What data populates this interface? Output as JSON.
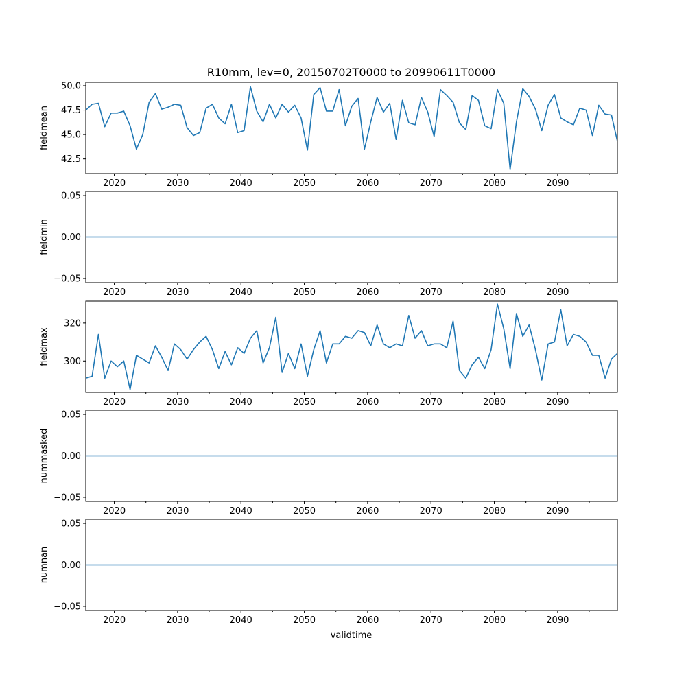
{
  "chart_data": {
    "type": "line",
    "title": "R10mm, lev=0, 20150702T0000 to 20990611T0000",
    "xlabel": "validtime",
    "xlim": [
      2015.5,
      2099.44
    ],
    "x_ticks_major": [
      2020,
      2030,
      2040,
      2050,
      2060,
      2070,
      2080,
      2090
    ],
    "x_tick_labels": [
      "2020",
      "2030",
      "2040",
      "2050",
      "2060",
      "2070",
      "2080",
      "2090"
    ],
    "x_ticks_minor": [
      2025,
      2035,
      2045,
      2055,
      2065,
      2075,
      2085,
      2095
    ],
    "years": [
      2015.5,
      2016.5,
      2017.5,
      2018.5,
      2019.5,
      2020.5,
      2021.5,
      2022.5,
      2023.5,
      2024.5,
      2025.5,
      2026.5,
      2027.5,
      2028.5,
      2029.5,
      2030.5,
      2031.5,
      2032.5,
      2033.5,
      2034.5,
      2035.5,
      2036.5,
      2037.5,
      2038.5,
      2039.5,
      2040.5,
      2041.5,
      2042.5,
      2043.5,
      2044.5,
      2045.5,
      2046.5,
      2047.5,
      2048.5,
      2049.5,
      2050.5,
      2051.5,
      2052.5,
      2053.5,
      2054.5,
      2055.5,
      2056.5,
      2057.5,
      2058.5,
      2059.5,
      2060.5,
      2061.5,
      2062.5,
      2063.5,
      2064.5,
      2065.5,
      2066.5,
      2067.5,
      2068.5,
      2069.5,
      2070.5,
      2071.5,
      2072.5,
      2073.5,
      2074.5,
      2075.5,
      2076.5,
      2077.5,
      2078.5,
      2079.5,
      2080.5,
      2081.5,
      2082.5,
      2083.5,
      2084.5,
      2085.5,
      2086.5,
      2087.5,
      2088.5,
      2089.5,
      2090.5,
      2091.5,
      2092.5,
      2093.5,
      2094.5,
      2095.5,
      2096.5,
      2097.5,
      2098.5,
      2099.44
    ],
    "panels": [
      {
        "ylabel": "fieldmean",
        "ylim": [
          41.0,
          50.35
        ],
        "yticks": [
          42.5,
          45.0,
          47.5,
          50.0
        ],
        "ytick_labels": [
          "42.5",
          "45.0",
          "47.5",
          "50.0"
        ],
        "values": [
          47.5,
          48.1,
          48.2,
          45.8,
          47.2,
          47.2,
          47.4,
          45.9,
          43.5,
          45.0,
          48.3,
          49.2,
          47.6,
          47.8,
          48.1,
          48.0,
          45.7,
          44.9,
          45.2,
          47.7,
          48.1,
          46.7,
          46.1,
          48.1,
          45.2,
          45.4,
          49.9,
          47.4,
          46.3,
          48.1,
          46.7,
          48.1,
          47.3,
          48.0,
          46.7,
          43.4,
          49.1,
          49.8,
          47.4,
          47.4,
          49.6,
          45.9,
          47.9,
          48.7,
          43.5,
          46.3,
          48.8,
          47.3,
          48.2,
          44.5,
          48.5,
          46.2,
          46.0,
          48.8,
          47.3,
          44.8,
          49.6,
          49.0,
          48.3,
          46.2,
          45.5,
          49.0,
          48.5,
          45.9,
          45.6,
          49.6,
          48.2,
          41.4,
          46.3,
          49.7,
          48.9,
          47.6,
          45.4,
          48.0,
          49.1,
          46.7,
          46.3,
          46.0,
          47.7,
          47.5,
          44.9,
          48.0,
          47.1,
          47.0,
          44.3
        ]
      },
      {
        "ylabel": "fieldmin",
        "ylim": [
          -0.055,
          0.055
        ],
        "yticks": [
          -0.05,
          0.0,
          0.05
        ],
        "ytick_labels": [
          "−0.05",
          "0.00",
          "0.05"
        ],
        "values": [
          0,
          0,
          0,
          0,
          0,
          0,
          0,
          0,
          0,
          0,
          0,
          0,
          0,
          0,
          0,
          0,
          0,
          0,
          0,
          0,
          0,
          0,
          0,
          0,
          0,
          0,
          0,
          0,
          0,
          0,
          0,
          0,
          0,
          0,
          0,
          0,
          0,
          0,
          0,
          0,
          0,
          0,
          0,
          0,
          0,
          0,
          0,
          0,
          0,
          0,
          0,
          0,
          0,
          0,
          0,
          0,
          0,
          0,
          0,
          0,
          0,
          0,
          0,
          0,
          0,
          0,
          0,
          0,
          0,
          0,
          0,
          0,
          0,
          0,
          0,
          0,
          0,
          0,
          0,
          0,
          0,
          0,
          0,
          0,
          0
        ]
      },
      {
        "ylabel": "fieldmax",
        "ylim": [
          283.5,
          331.5
        ],
        "yticks": [
          300,
          320
        ],
        "ytick_labels": [
          "300",
          "320"
        ],
        "values": [
          291,
          292,
          314,
          291,
          300,
          297,
          300,
          285,
          303,
          301,
          299,
          308,
          302,
          295,
          309,
          306,
          301,
          306,
          310,
          313,
          306,
          296,
          305,
          298,
          307,
          304,
          312,
          316,
          299,
          307,
          323,
          294,
          304,
          296,
          309,
          292,
          306,
          316,
          299,
          309,
          309,
          313,
          312,
          316,
          315,
          308,
          319,
          309,
          307,
          309,
          308,
          324,
          312,
          316,
          308,
          309,
          309,
          307,
          321,
          295,
          291,
          298,
          302,
          296,
          306,
          330,
          317,
          296,
          325,
          313,
          319,
          306,
          290,
          309,
          310,
          327,
          308,
          314,
          313,
          310,
          303,
          303,
          291,
          301,
          304
        ]
      },
      {
        "ylabel": "nummasked",
        "ylim": [
          -0.055,
          0.055
        ],
        "yticks": [
          -0.05,
          0.0,
          0.05
        ],
        "ytick_labels": [
          "−0.05",
          "0.00",
          "0.05"
        ],
        "values": [
          0,
          0,
          0,
          0,
          0,
          0,
          0,
          0,
          0,
          0,
          0,
          0,
          0,
          0,
          0,
          0,
          0,
          0,
          0,
          0,
          0,
          0,
          0,
          0,
          0,
          0,
          0,
          0,
          0,
          0,
          0,
          0,
          0,
          0,
          0,
          0,
          0,
          0,
          0,
          0,
          0,
          0,
          0,
          0,
          0,
          0,
          0,
          0,
          0,
          0,
          0,
          0,
          0,
          0,
          0,
          0,
          0,
          0,
          0,
          0,
          0,
          0,
          0,
          0,
          0,
          0,
          0,
          0,
          0,
          0,
          0,
          0,
          0,
          0,
          0,
          0,
          0,
          0,
          0,
          0,
          0,
          0,
          0,
          0,
          0
        ]
      },
      {
        "ylabel": "numnan",
        "ylim": [
          -0.055,
          0.055
        ],
        "yticks": [
          -0.05,
          0.0,
          0.05
        ],
        "ytick_labels": [
          "−0.05",
          "0.00",
          "0.05"
        ],
        "values": [
          0,
          0,
          0,
          0,
          0,
          0,
          0,
          0,
          0,
          0,
          0,
          0,
          0,
          0,
          0,
          0,
          0,
          0,
          0,
          0,
          0,
          0,
          0,
          0,
          0,
          0,
          0,
          0,
          0,
          0,
          0,
          0,
          0,
          0,
          0,
          0,
          0,
          0,
          0,
          0,
          0,
          0,
          0,
          0,
          0,
          0,
          0,
          0,
          0,
          0,
          0,
          0,
          0,
          0,
          0,
          0,
          0,
          0,
          0,
          0,
          0,
          0,
          0,
          0,
          0,
          0,
          0,
          0,
          0,
          0,
          0,
          0,
          0,
          0,
          0,
          0,
          0,
          0,
          0,
          0,
          0,
          0,
          0,
          0,
          0
        ]
      }
    ],
    "colors": {
      "line": "#1f77b4"
    }
  }
}
